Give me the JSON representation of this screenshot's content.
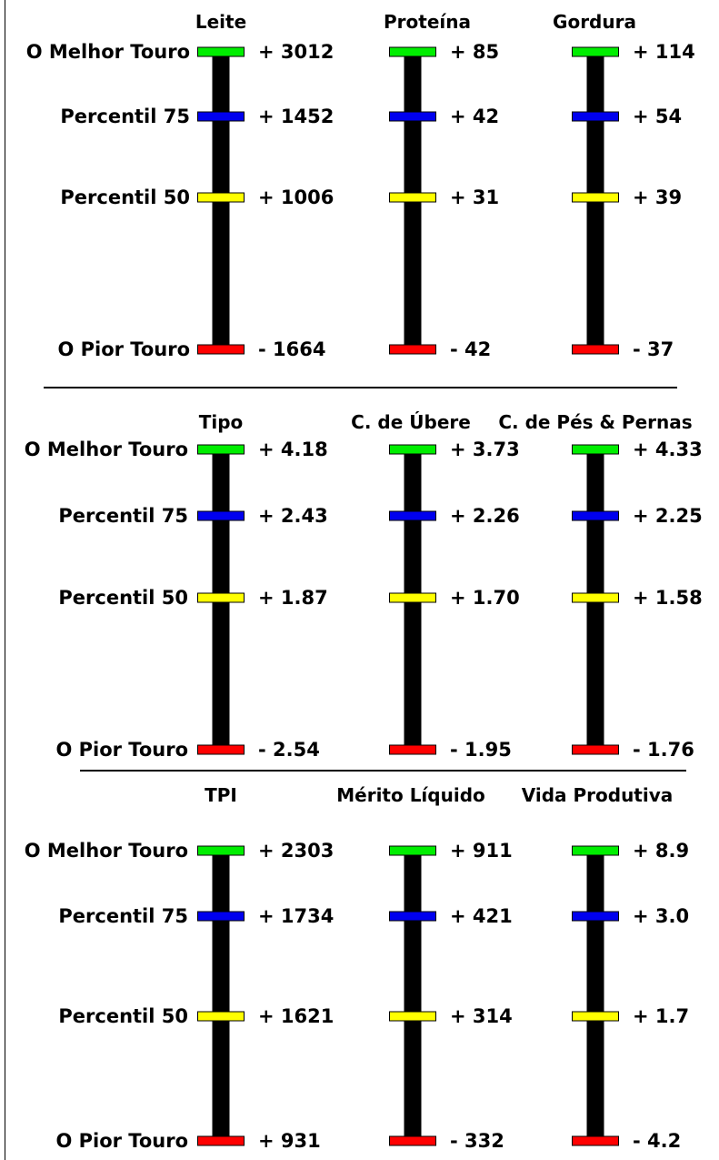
{
  "row_labels": [
    "O Melhor Touro",
    "Percentil 75",
    "Percentil 50",
    "O Pior Touro"
  ],
  "colors": {
    "best": "#00ee00",
    "p75": "#0000ee",
    "p50": "#ffff00",
    "worst": "#ff0000"
  },
  "chart_data": [
    {
      "type": "bar",
      "metrics": [
        {
          "title": "Leite",
          "labels": [
            "+ 3012",
            "+ 1452",
            "+ 1006",
            "- 1664"
          ],
          "values": [
            3012,
            1452,
            1006,
            -1664
          ]
        },
        {
          "title": "Proteína",
          "labels": [
            "+ 85",
            "+ 42",
            "+ 31",
            "- 42"
          ],
          "values": [
            85,
            42,
            31,
            -42
          ]
        },
        {
          "title": "Gordura",
          "labels": [
            "+ 114",
            "+ 54",
            "+ 39",
            "-  37"
          ],
          "values": [
            114,
            54,
            39,
            -37
          ]
        }
      ]
    },
    {
      "type": "bar",
      "metrics": [
        {
          "title": "Tipo",
          "labels": [
            "+ 4.18",
            "+ 2.43",
            "+ 1.87",
            "- 2.54"
          ],
          "values": [
            4.18,
            2.43,
            1.87,
            -2.54
          ]
        },
        {
          "title": "C. de Úbere",
          "labels": [
            "+ 3.73",
            "+ 2.26",
            "+ 1.70",
            "- 1.95"
          ],
          "values": [
            3.73,
            2.26,
            1.7,
            -1.95
          ]
        },
        {
          "title": "C. de Pés & Pernas",
          "labels": [
            "+ 4.33",
            "+ 2.25",
            "+ 1.58",
            "- 1.76"
          ],
          "values": [
            4.33,
            2.25,
            1.58,
            -1.76
          ]
        }
      ]
    },
    {
      "type": "bar",
      "metrics": [
        {
          "title": "TPI",
          "labels": [
            "+ 2303",
            "+ 1734",
            "+ 1621",
            "+  931"
          ],
          "values": [
            2303,
            1734,
            1621,
            931
          ]
        },
        {
          "title": "Mérito Líquido",
          "labels": [
            "+ 911",
            "+ 421",
            "+ 314",
            "- 332"
          ],
          "values": [
            911,
            421,
            314,
            -332
          ]
        },
        {
          "title": "Vida Produtiva",
          "labels": [
            "+ 8.9",
            "+ 3.0",
            "+ 1.7",
            "- 4.2"
          ],
          "values": [
            8.9,
            3.0,
            1.7,
            -4.2
          ]
        }
      ]
    }
  ]
}
